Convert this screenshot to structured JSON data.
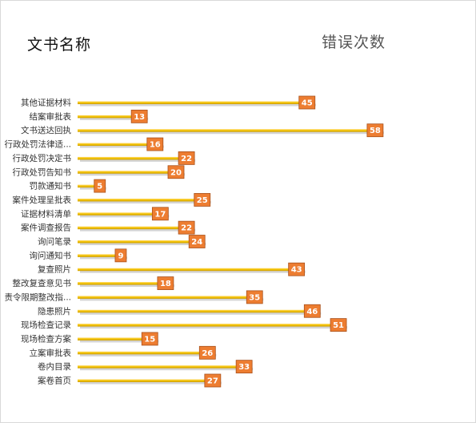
{
  "header": {
    "title_left": "文书名称",
    "title_right": "错误次数"
  },
  "colors": {
    "bar": "#f2c200",
    "bar_shadow": "#b0b0b0",
    "label_bg": "#ed7d31",
    "label_border": "#a9501a"
  },
  "chart_data": {
    "type": "bar",
    "orientation": "horizontal",
    "categories": [
      "其他证据材料",
      "结案审批表",
      "文书送达回执",
      "行政处罚法律适...",
      "行政处罚决定书",
      "行政处罚告知书",
      "罚款通知书",
      "案件处理呈批表",
      "证据材料清单",
      "案件调查报告",
      "询问笔录",
      "询问通知书",
      "复查照片",
      "整改复查意见书",
      "责令限期整改指...",
      "隐患照片",
      "现场检查记录",
      "现场检查方案",
      "立案审批表",
      "卷内目录",
      "案卷首页"
    ],
    "values": [
      45,
      13,
      58,
      16,
      22,
      20,
      5,
      25,
      17,
      22,
      24,
      9,
      43,
      18,
      35,
      46,
      51,
      15,
      26,
      33,
      27
    ],
    "xlim": [
      0,
      60
    ],
    "grid": false,
    "legend": "none"
  }
}
